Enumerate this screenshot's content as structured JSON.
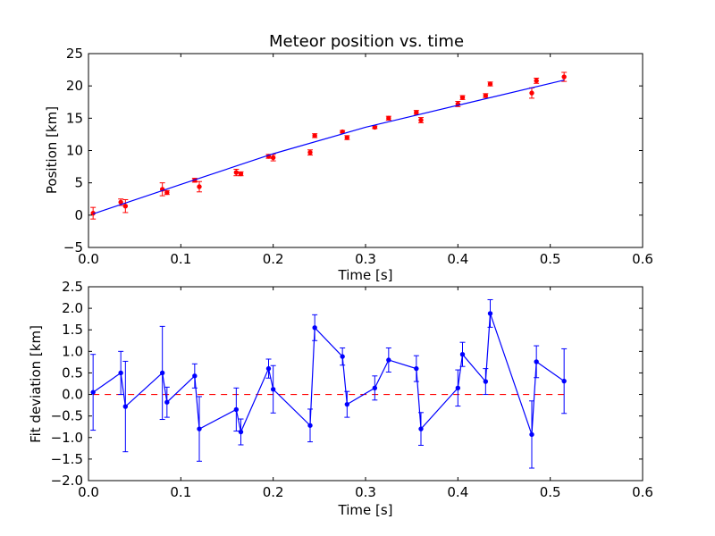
{
  "chart_data": [
    {
      "type": "scatter",
      "title": "Meteor position vs. time",
      "xlabel": "Time [s]",
      "ylabel": "Position [km]",
      "xlim": [
        0.0,
        0.6
      ],
      "ylim": [
        -5,
        25
      ],
      "grid": false,
      "legend": "none",
      "x_ticks": [
        0.0,
        0.1,
        0.2,
        0.3,
        0.4,
        0.5,
        0.6
      ],
      "x_tick_labels": [
        "0.0",
        "0.1",
        "0.2",
        "0.3",
        "0.4",
        "0.5",
        "0.6"
      ],
      "y_ticks": [
        -5,
        0,
        5,
        10,
        15,
        20,
        25
      ],
      "y_tick_labels": [
        "−5",
        "0",
        "5",
        "10",
        "15",
        "20",
        "25"
      ],
      "series": [
        {
          "kind": "errorbar-points",
          "color": "#ff0000",
          "x": [
            0.005,
            0.035,
            0.04,
            0.08,
            0.085,
            0.115,
            0.12,
            0.16,
            0.165,
            0.195,
            0.2,
            0.24,
            0.245,
            0.275,
            0.28,
            0.31,
            0.325,
            0.355,
            0.36,
            0.4,
            0.405,
            0.43,
            0.435,
            0.48,
            0.485,
            0.515
          ],
          "y": [
            0.3,
            2.0,
            1.4,
            4.0,
            3.5,
            5.4,
            4.4,
            6.6,
            6.4,
            9.1,
            8.9,
            9.7,
            12.3,
            12.9,
            12.0,
            13.6,
            15.0,
            15.9,
            14.7,
            17.2,
            18.2,
            18.5,
            20.3,
            18.9,
            20.8,
            21.4
          ],
          "yerr": [
            0.9,
            0.5,
            1.0,
            1.0,
            0.3,
            0.3,
            0.8,
            0.5,
            0.3,
            0.3,
            0.5,
            0.4,
            0.3,
            0.2,
            0.3,
            0.2,
            0.3,
            0.3,
            0.4,
            0.4,
            0.3,
            0.3,
            0.3,
            0.8,
            0.4,
            0.7
          ]
        },
        {
          "kind": "fit-line",
          "color": "#0000ff",
          "x": [
            0.005,
            0.1,
            0.2,
            0.3,
            0.4,
            0.515
          ],
          "y": [
            0.2,
            4.75,
            9.5,
            13.6,
            17.0,
            20.9
          ]
        }
      ]
    },
    {
      "type": "line",
      "title": "",
      "xlabel": "Time [s]",
      "ylabel": "Fit deviation [km]",
      "xlim": [
        0.0,
        0.6
      ],
      "ylim": [
        -2.0,
        2.5
      ],
      "grid": false,
      "legend": "none",
      "x_ticks": [
        0.0,
        0.1,
        0.2,
        0.3,
        0.4,
        0.5,
        0.6
      ],
      "x_tick_labels": [
        "0.0",
        "0.1",
        "0.2",
        "0.3",
        "0.4",
        "0.5",
        "0.6"
      ],
      "y_ticks": [
        -2.0,
        -1.5,
        -1.0,
        -0.5,
        0.0,
        0.5,
        1.0,
        1.5,
        2.0,
        2.5
      ],
      "y_tick_labels": [
        "−2.0",
        "−1.5",
        "−1.0",
        "−0.5",
        "0.0",
        "0.5",
        "1.0",
        "1.5",
        "2.0",
        "2.5"
      ],
      "reference_line": {
        "y": 0.0,
        "color": "#ff0000",
        "style": "dashed"
      },
      "series": [
        {
          "kind": "errorbar-line",
          "color": "#0000ff",
          "x": [
            0.005,
            0.035,
            0.04,
            0.08,
            0.085,
            0.115,
            0.12,
            0.16,
            0.165,
            0.195,
            0.2,
            0.24,
            0.245,
            0.275,
            0.28,
            0.31,
            0.325,
            0.355,
            0.36,
            0.4,
            0.405,
            0.43,
            0.435,
            0.48,
            0.485,
            0.515
          ],
          "y": [
            0.05,
            0.5,
            -0.28,
            0.5,
            -0.18,
            0.43,
            -0.8,
            -0.35,
            -0.87,
            0.6,
            0.12,
            -0.72,
            1.55,
            0.88,
            -0.23,
            0.15,
            0.8,
            0.6,
            -0.8,
            0.15,
            0.93,
            0.3,
            1.88,
            -0.93,
            0.76,
            0.31
          ],
          "yerr": [
            0.88,
            0.5,
            1.05,
            1.08,
            0.35,
            0.28,
            0.75,
            0.5,
            0.3,
            0.22,
            0.55,
            0.38,
            0.3,
            0.2,
            0.3,
            0.28,
            0.28,
            0.3,
            0.38,
            0.42,
            0.28,
            0.3,
            0.32,
            0.78,
            0.37,
            0.75
          ]
        }
      ]
    }
  ]
}
